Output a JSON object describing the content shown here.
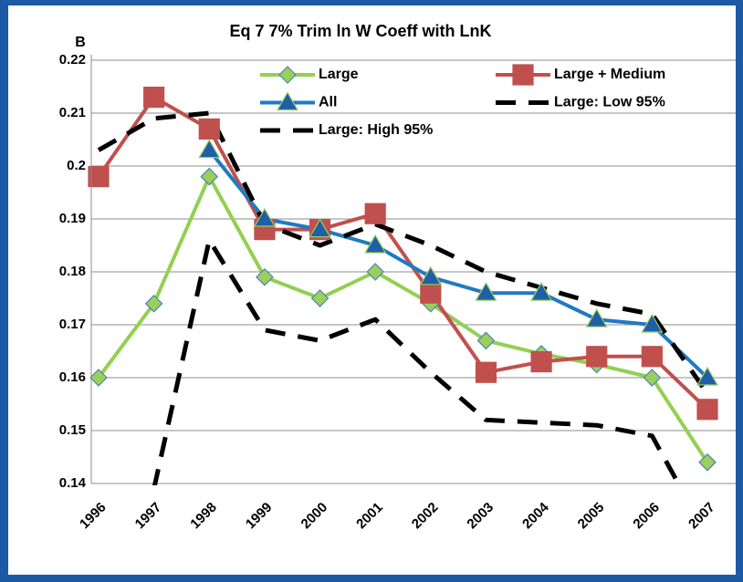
{
  "chart_data": {
    "type": "line",
    "title": "Eq 7 7% Trim  ln W Coeff with LnK",
    "y_label": "B",
    "categories": [
      "1996",
      "1997",
      "1998",
      "1999",
      "2000",
      "2001",
      "2002",
      "2003",
      "2004",
      "2005",
      "2006",
      "2007"
    ],
    "ylim": [
      0.14,
      0.22
    ],
    "yticks": [
      0.14,
      0.15,
      0.16,
      0.17,
      0.18,
      0.19,
      0.2,
      0.21,
      0.22
    ],
    "grid": true,
    "series": [
      {
        "name": "Large",
        "color": "#92d050",
        "marker": "diamond",
        "marker_color": "#9bcf5b",
        "dashed": false,
        "values": [
          0.16,
          0.174,
          0.198,
          0.179,
          0.175,
          0.18,
          0.174,
          0.167,
          0.1645,
          0.1625,
          0.16,
          0.144
        ]
      },
      {
        "name": "Large + Medium",
        "color": "#c0504d",
        "marker": "square",
        "marker_color": "#c0504d",
        "dashed": false,
        "values": [
          0.198,
          0.213,
          0.207,
          0.188,
          0.188,
          0.191,
          0.176,
          0.161,
          0.163,
          0.164,
          0.164,
          0.154
        ]
      },
      {
        "name": "All",
        "color": "#1f7ac4",
        "marker": "triangle",
        "marker_color": "#1f5fa8",
        "dashed": false,
        "values": [
          null,
          null,
          0.203,
          0.19,
          0.188,
          0.185,
          0.179,
          0.176,
          0.176,
          0.171,
          0.17,
          0.16
        ]
      },
      {
        "name": "Large: Low 95%",
        "color": "#000000",
        "marker": "none",
        "dashed": true,
        "values": [
          null,
          0.139,
          0.186,
          0.169,
          0.167,
          0.171,
          0.161,
          0.152,
          0.1515,
          0.151,
          0.149,
          0.13
        ]
      },
      {
        "name": "Large: High 95%",
        "color": "#000000",
        "marker": "none",
        "dashed": true,
        "values": [
          0.203,
          0.209,
          0.21,
          0.189,
          0.185,
          0.189,
          0.185,
          0.18,
          0.177,
          0.174,
          0.172,
          0.157
        ]
      }
    ]
  }
}
